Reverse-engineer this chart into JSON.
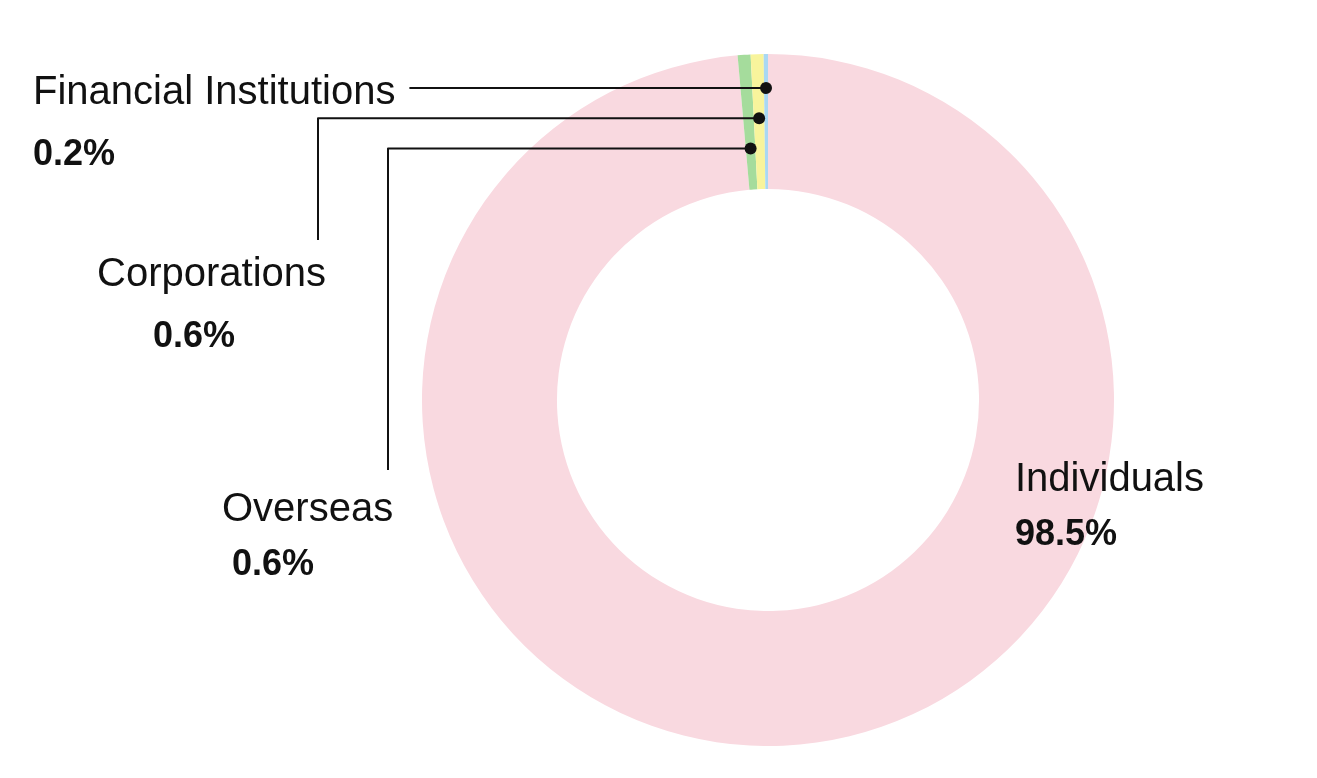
{
  "chart_data": {
    "type": "donut",
    "categories": [
      "Individuals",
      "Overseas",
      "Corporations",
      "Financial Institutions"
    ],
    "values": [
      98.5,
      0.6,
      0.6,
      0.2
    ],
    "value_labels": [
      "98.5%",
      "0.6%",
      "0.6%",
      "0.2%"
    ],
    "colors": [
      "#f9d9e0",
      "#a5dc9c",
      "#f8f49c",
      "#a9d8f3"
    ],
    "legend": false
  }
}
